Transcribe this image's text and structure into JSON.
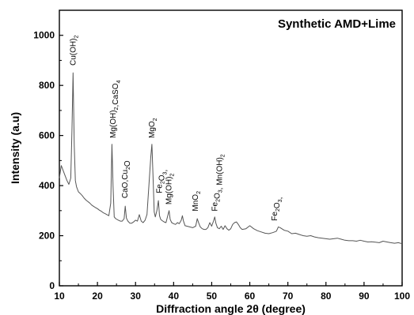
{
  "chart_data": {
    "type": "line",
    "title": "Synthetic AMD+Lime",
    "xlabel": "Diffraction angle 2θ (degree)",
    "ylabel": "Intensity (a.u)",
    "xlim": [
      10,
      100
    ],
    "ylim": [
      0,
      1100
    ],
    "xticks": [
      10,
      20,
      30,
      40,
      50,
      60,
      70,
      80,
      90,
      100
    ],
    "yticks": [
      0,
      200,
      400,
      600,
      800,
      1000
    ],
    "grid": false,
    "legend": "none",
    "line_color": "#555555",
    "series": [
      {
        "x": [
          10,
          10.5,
          11,
          11.5,
          12,
          12.5,
          13,
          13.3,
          13.6,
          13.9,
          14.2,
          14.5,
          15,
          15.5,
          16,
          16.5,
          17,
          17.5,
          18,
          18.5,
          19,
          19.5,
          20,
          20.5,
          21,
          21.5,
          22,
          22.5,
          23,
          23.5,
          23.8,
          24.1,
          24.4,
          24.8,
          25.5,
          26,
          26.5,
          27,
          27.3,
          27.6,
          28,
          28.5,
          29,
          29.5,
          30,
          30.5,
          31,
          31.5,
          32,
          32.5,
          33,
          33.5,
          34,
          34.3,
          34.6,
          34.9,
          35.2,
          35.6,
          36,
          36.3,
          36.6,
          37,
          37.5,
          38,
          38.5,
          38.8,
          39.1,
          39.5,
          40,
          40.5,
          41,
          41.5,
          42,
          42.3,
          42.6,
          43,
          44,
          45,
          45.8,
          46.2,
          46.6,
          47,
          47.5,
          48,
          48.5,
          49,
          49.5,
          50,
          50.5,
          50.8,
          51.1,
          51.5,
          52,
          52.5,
          53,
          53.5,
          54,
          54.5,
          55,
          55.5,
          56,
          56.5,
          57,
          57.5,
          58,
          59,
          60,
          61,
          62,
          63,
          64,
          65,
          66,
          66.5,
          67,
          67.5,
          68,
          69,
          70,
          71,
          72,
          73,
          74,
          75,
          76,
          77,
          78,
          79,
          80,
          81,
          82,
          83,
          84,
          85,
          86,
          87,
          88,
          89,
          90,
          91,
          92,
          93,
          94,
          95,
          96,
          97,
          98,
          99,
          100
        ],
        "y": [
          430,
          480,
          460,
          440,
          420,
          405,
          430,
          620,
          850,
          560,
          420,
          395,
          375,
          368,
          360,
          350,
          342,
          336,
          330,
          322,
          317,
          312,
          308,
          302,
          298,
          292,
          288,
          284,
          280,
          330,
          565,
          400,
          275,
          268,
          262,
          258,
          258,
          268,
          318,
          270,
          258,
          250,
          250,
          255,
          262,
          258,
          284,
          258,
          252,
          262,
          285,
          400,
          515,
          565,
          430,
          295,
          275,
          300,
          340,
          280,
          265,
          260,
          255,
          252,
          282,
          300,
          265,
          252,
          248,
          245,
          252,
          248,
          262,
          280,
          258,
          240,
          236,
          232,
          238,
          268,
          250,
          235,
          228,
          225,
          225,
          232,
          252,
          238,
          260,
          275,
          250,
          232,
          228,
          238,
          225,
          240,
          228,
          222,
          228,
          245,
          252,
          255,
          245,
          232,
          225,
          228,
          240,
          228,
          220,
          215,
          210,
          208,
          212,
          215,
          218,
          235,
          232,
          222,
          218,
          208,
          210,
          205,
          200,
          198,
          200,
          195,
          192,
          190,
          188,
          186,
          188,
          190,
          186,
          182,
          180,
          180,
          178,
          182,
          178,
          175,
          176,
          174,
          172,
          178,
          175,
          172,
          170,
          172,
          168
        ]
      }
    ],
    "annotations": [
      {
        "text": "Cu(OH)2",
        "x": 13.6,
        "y": 870
      },
      {
        "text": "Mg(OH)2,CaSO4",
        "x": 24.1,
        "y": 580
      },
      {
        "text": "CaO,Cu2O",
        "x": 27.3,
        "y": 340
      },
      {
        "text": "MgO2",
        "x": 34.3,
        "y": 580
      },
      {
        "text": "Fe2O3,",
        "x": 36.3,
        "y": 360
      },
      {
        "text": "Mg(OH)2",
        "x": 38.8,
        "y": 315
      },
      {
        "text": "MnO2",
        "x": 45.8,
        "y": 288
      },
      {
        "text": "Fe2O3, Mn(OH)2",
        "x": 50.8,
        "y": 288
      },
      {
        "text": "Fe2O3,",
        "x": 66.5,
        "y": 250
      }
    ]
  }
}
